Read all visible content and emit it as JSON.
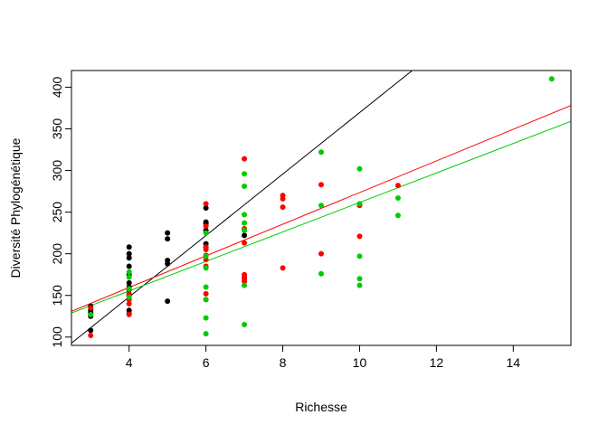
{
  "chart_data": {
    "type": "scatter",
    "title": "",
    "xlabel": "Richesse",
    "ylabel": "Diversité Phylogénétique",
    "xlim": [
      2.5,
      15.5
    ],
    "ylim": [
      90,
      420
    ],
    "xticks": [
      4,
      6,
      8,
      10,
      12,
      14
    ],
    "yticks": [
      100,
      150,
      200,
      250,
      300,
      350,
      400
    ],
    "grid": false,
    "legend": "none",
    "series": [
      {
        "color": "#000000",
        "points": [
          [
            3,
            108
          ],
          [
            3,
            125
          ],
          [
            3,
            128
          ],
          [
            3,
            130
          ],
          [
            3,
            133
          ],
          [
            3,
            137
          ],
          [
            4,
            128
          ],
          [
            4,
            132
          ],
          [
            4,
            150
          ],
          [
            4,
            157
          ],
          [
            4,
            160
          ],
          [
            4,
            165
          ],
          [
            4,
            175
          ],
          [
            4,
            185
          ],
          [
            4,
            195
          ],
          [
            4,
            200
          ],
          [
            4,
            208
          ],
          [
            5,
            143
          ],
          [
            5,
            188
          ],
          [
            5,
            192
          ],
          [
            5,
            218
          ],
          [
            5,
            225
          ],
          [
            6,
            208
          ],
          [
            6,
            212
          ],
          [
            6,
            228
          ],
          [
            6,
            236
          ],
          [
            6,
            238
          ],
          [
            6,
            255
          ],
          [
            7,
            222
          ]
        ],
        "fit": [
          0.5,
          36.9
        ]
      },
      {
        "color": "#ff0000",
        "points": [
          [
            3,
            102
          ],
          [
            3,
            135
          ],
          [
            4,
            127
          ],
          [
            4,
            140
          ],
          [
            4,
            145
          ],
          [
            4,
            152
          ],
          [
            6,
            145
          ],
          [
            6,
            152
          ],
          [
            6,
            185
          ],
          [
            6,
            193
          ],
          [
            6,
            198
          ],
          [
            6,
            205
          ],
          [
            6,
            208
          ],
          [
            6,
            233
          ],
          [
            6,
            260
          ],
          [
            7,
            167
          ],
          [
            7,
            170
          ],
          [
            7,
            172
          ],
          [
            7,
            175
          ],
          [
            7,
            213
          ],
          [
            7,
            230
          ],
          [
            7,
            314
          ],
          [
            8,
            183
          ],
          [
            8,
            256
          ],
          [
            8,
            266
          ],
          [
            8,
            270
          ],
          [
            9,
            200
          ],
          [
            9,
            283
          ],
          [
            10,
            221
          ],
          [
            10,
            258
          ],
          [
            11,
            282
          ]
        ],
        "fit": [
          83.5,
          19.0
        ]
      },
      {
        "color": "#00cc00",
        "points": [
          [
            3,
            127
          ],
          [
            4,
            148
          ],
          [
            4,
            158
          ],
          [
            4,
            172
          ],
          [
            4,
            178
          ],
          [
            6,
            104
          ],
          [
            6,
            123
          ],
          [
            6,
            145
          ],
          [
            6,
            160
          ],
          [
            6,
            183
          ],
          [
            6,
            197
          ],
          [
            6,
            225
          ],
          [
            7,
            115
          ],
          [
            7,
            162
          ],
          [
            7,
            228
          ],
          [
            7,
            237
          ],
          [
            7,
            247
          ],
          [
            7,
            281
          ],
          [
            7,
            296
          ],
          [
            9,
            176
          ],
          [
            9,
            258
          ],
          [
            9,
            322
          ],
          [
            10,
            162
          ],
          [
            10,
            170
          ],
          [
            10,
            197
          ],
          [
            10,
            260
          ],
          [
            10,
            302
          ],
          [
            11,
            246
          ],
          [
            11,
            267
          ],
          [
            15,
            410
          ]
        ],
        "fit": [
          84.6,
          17.7
        ]
      }
    ]
  }
}
